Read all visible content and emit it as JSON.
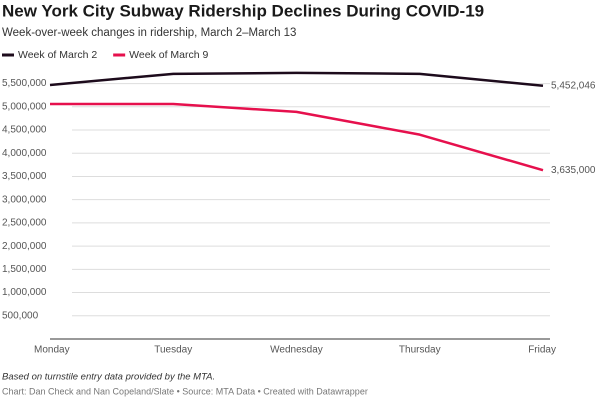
{
  "chart_data": {
    "type": "line",
    "title": "New York City Subway Ridership Declines During COVID-19",
    "subtitle": "Week-over-week changes in ridership, March 2–March 13",
    "categories": [
      "Monday",
      "Tuesday",
      "Wednesday",
      "Thursday",
      "Friday"
    ],
    "series": [
      {
        "name": "Week of March 2",
        "color": "#1d0b1c",
        "values": [
          5470000,
          5710000,
          5730000,
          5710000,
          5452046
        ],
        "value_labels": [
          null,
          null,
          null,
          null,
          "5,452,046"
        ]
      },
      {
        "name": "Week of March 9",
        "color": "#e6104d",
        "values": [
          5060000,
          5060000,
          4890000,
          4400000,
          3635000
        ],
        "value_labels": [
          null,
          null,
          null,
          null,
          "3,635,000"
        ]
      }
    ],
    "ylim": [
      0,
      5900000
    ],
    "yticks": [
      {
        "value": 500000,
        "label": "500,000"
      },
      {
        "value": 1000000,
        "label": "1,000,000"
      },
      {
        "value": 1500000,
        "label": "1,500,000"
      },
      {
        "value": 2000000,
        "label": "2,000,000"
      },
      {
        "value": 2500000,
        "label": "2,500,000"
      },
      {
        "value": 3000000,
        "label": "3,000,000"
      },
      {
        "value": 3500000,
        "label": "3,500,000"
      },
      {
        "value": 4000000,
        "label": "4,000,000"
      },
      {
        "value": 4500000,
        "label": "4,500,000"
      },
      {
        "value": 5000000,
        "label": "5,000,000"
      },
      {
        "value": 5500000,
        "label": "5,500,000"
      }
    ],
    "grid": true,
    "note": "Based on turnstile entry data provided by the MTA.",
    "source": "Chart: Dan Check and Nan Copeland/Slate • Source: MTA Data • Created with Datawrapper"
  }
}
